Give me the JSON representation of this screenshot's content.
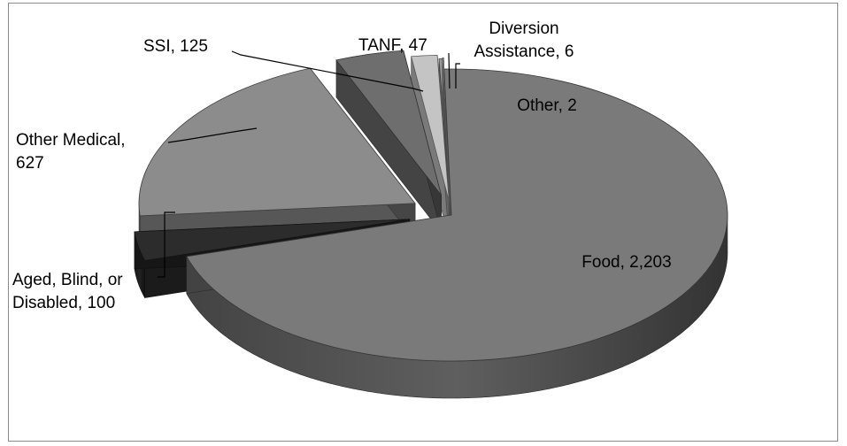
{
  "chart_data": {
    "type": "pie",
    "title": "",
    "style": "3d-exploded",
    "legend": "none",
    "slices": [
      {
        "label": "Food",
        "value": 2203,
        "value_text": "2,203",
        "color": "#7a7a7a",
        "label_lines": [
          "Food,  2,203"
        ]
      },
      {
        "label": "Aged, Blind, or Disabled",
        "value": 100,
        "value_text": "100",
        "color": "#2c2c2c",
        "label_lines": [
          "Aged, Blind, or",
          "Disabled,  100"
        ]
      },
      {
        "label": "Other Medical",
        "value": 627,
        "value_text": "627",
        "color": "#8c8c8c",
        "label_lines": [
          "Other Medical,",
          "627"
        ]
      },
      {
        "label": "SSI",
        "value": 125,
        "value_text": "125",
        "color": "#6e6e6e",
        "label_lines": [
          "SSI,  125"
        ]
      },
      {
        "label": "TANF",
        "value": 47,
        "value_text": "47",
        "color": "#c4c4c4",
        "label_lines": [
          "TANF, 47"
        ]
      },
      {
        "label": "Diversion Assistance",
        "value": 6,
        "value_text": "6",
        "color": "#9a9a9a",
        "label_lines": [
          "Diversion",
          "Assistance,  6"
        ]
      },
      {
        "label": "Other",
        "value": 2,
        "value_text": "2",
        "color": "#b0b0b0",
        "label_lines": [
          "Other,  2"
        ]
      }
    ]
  }
}
